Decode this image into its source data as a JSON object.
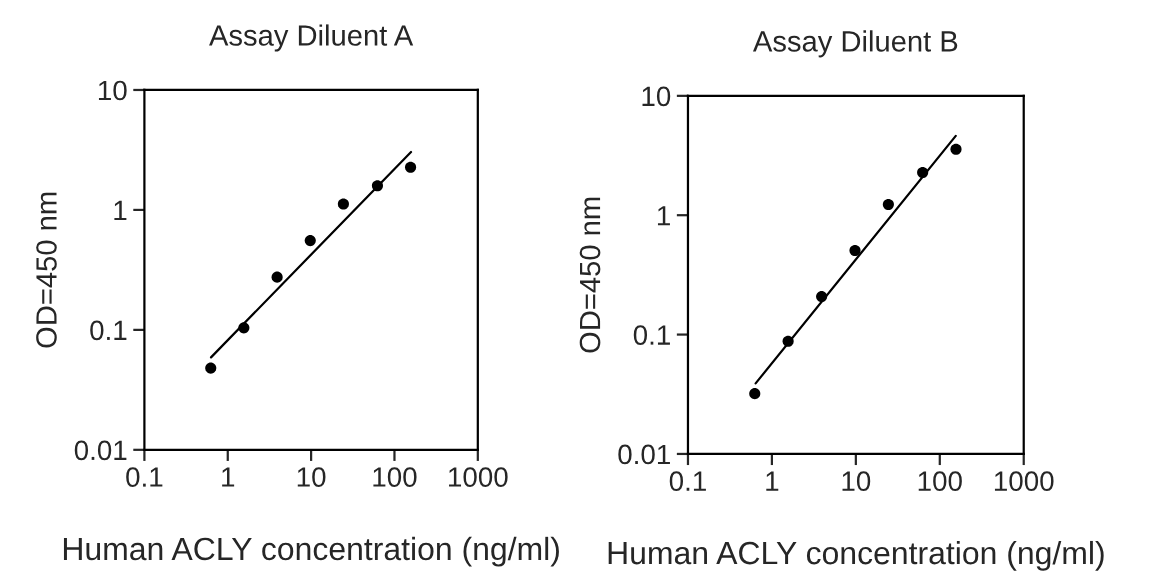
{
  "chart_data": [
    {
      "type": "scatter",
      "title": "Assay Diluent A",
      "xlabel": "Human ACLY concentration (ng/ml)",
      "ylabel": "OD=450 nm",
      "log": "xy",
      "grid": false,
      "xlim": [
        0.1,
        1000
      ],
      "ylim": [
        0.01,
        10
      ],
      "xticks": [
        0.1,
        1,
        10,
        100,
        1000
      ],
      "yticks": [
        0.01,
        0.1,
        1,
        10
      ],
      "series": [
        {
          "color": "#000000",
          "marker": "circle",
          "x": [
            0.625,
            1.56,
            3.91,
            9.77,
            24.4,
            62.5,
            156
          ],
          "values": [
            0.048,
            0.104,
            0.275,
            0.555,
            1.12,
            1.59,
            2.27
          ]
        },
        {
          "type": "line",
          "color": "#000000",
          "x": [
            0.63,
            158
          ],
          "values": [
            0.059,
            3.04
          ]
        }
      ]
    },
    {
      "type": "scatter",
      "title": "Assay Diluent B",
      "xlabel": "Human ACLY concentration (ng/ml)",
      "ylabel": "OD=450 nm",
      "log": "xy",
      "grid": false,
      "xlim": [
        0.1,
        1000
      ],
      "ylim": [
        0.01,
        10
      ],
      "xticks": [
        0.1,
        1,
        10,
        100,
        1000
      ],
      "yticks": [
        0.01,
        0.1,
        1,
        10
      ],
      "series": [
        {
          "color": "#000000",
          "marker": "circle",
          "x": [
            0.625,
            1.56,
            3.91,
            9.77,
            24.4,
            62.5,
            156
          ],
          "values": [
            0.032,
            0.088,
            0.208,
            0.506,
            1.23,
            2.28,
            3.57
          ]
        },
        {
          "type": "line",
          "color": "#000000",
          "x": [
            0.64,
            155
          ],
          "values": [
            0.039,
            4.62
          ]
        }
      ]
    }
  ]
}
